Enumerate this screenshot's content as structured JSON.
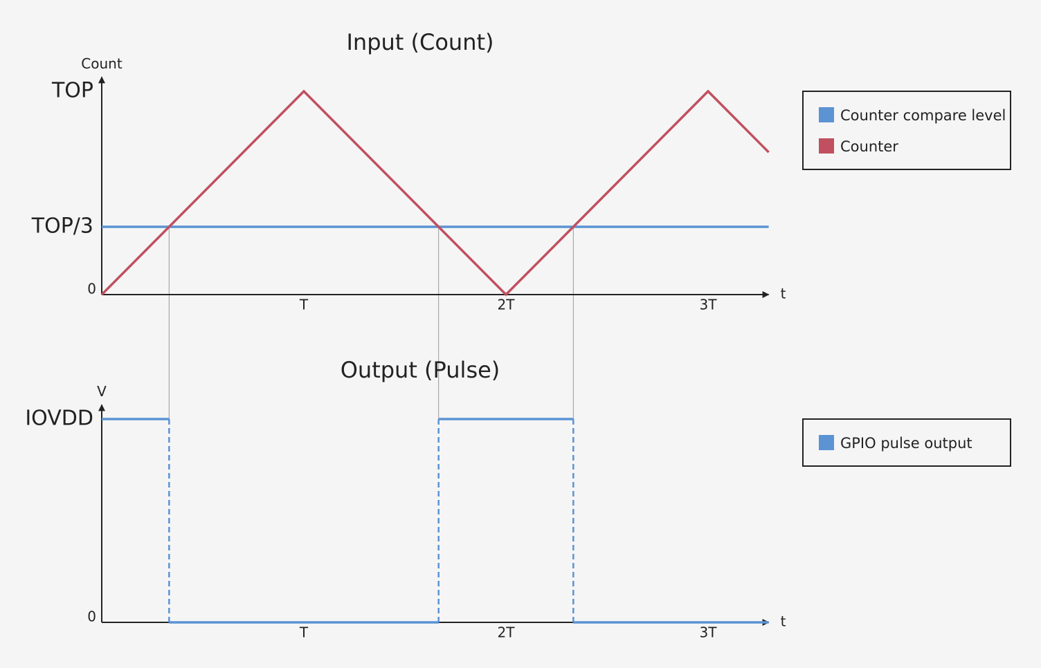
{
  "chart_data": [
    {
      "type": "line",
      "title": "Input (Count)",
      "y_label": "Count",
      "x_label": "t",
      "xlim": [
        0,
        3.3
      ],
      "ylim": [
        0,
        1.07
      ],
      "xticks": [
        {
          "value": 1,
          "label": "T"
        },
        {
          "value": 2,
          "label": "2T"
        },
        {
          "value": 3,
          "label": "3T"
        }
      ],
      "yticks": [
        0,
        {
          "value": 0.3333,
          "label": "TOP/3"
        },
        {
          "value": 1,
          "label": "TOP"
        }
      ],
      "legend": "right",
      "series": [
        {
          "name": "Counter compare level",
          "color": "#5b93d3",
          "x": [
            0,
            3.3
          ],
          "values": [
            0.3333,
            0.3333
          ]
        },
        {
          "name": "Counter",
          "color": "#c0505f",
          "x": [
            0,
            1,
            2,
            3,
            3.3
          ],
          "values": [
            0,
            1,
            0,
            1,
            0.7
          ]
        }
      ]
    },
    {
      "type": "step",
      "title": "Output (Pulse)",
      "y_label": "V",
      "x_label": "t",
      "xlim": [
        0,
        3.3
      ],
      "ylim": [
        0,
        1.07
      ],
      "xticks": [
        {
          "value": 1,
          "label": "T"
        },
        {
          "value": 2,
          "label": "2T"
        },
        {
          "value": 3,
          "label": "3T"
        }
      ],
      "yticks": [
        0,
        {
          "value": 1,
          "label": "IOVDD"
        }
      ],
      "legend": "right",
      "series": [
        {
          "name": "GPIO pulse output",
          "color": "#5b93d3",
          "x": [
            0,
            0.3333,
            0.3333,
            1.6667,
            1.6667,
            2.3333,
            2.3333,
            3.3
          ],
          "values": [
            1,
            1,
            0,
            0,
            1,
            1,
            0,
            0
          ]
        }
      ]
    }
  ]
}
